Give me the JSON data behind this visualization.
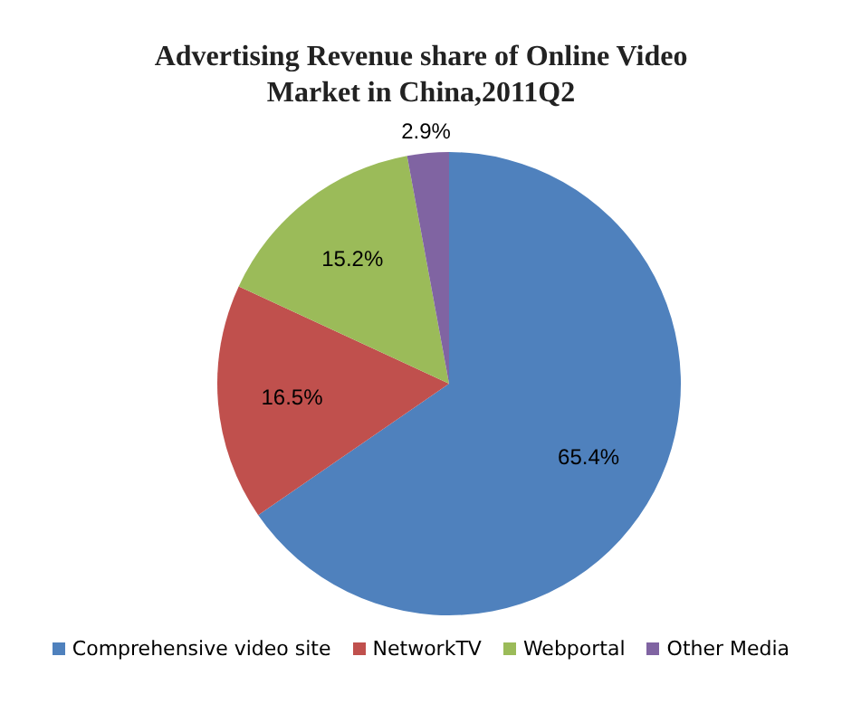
{
  "chart_data": {
    "type": "pie",
    "title": "Advertising Revenue share of Online Video Market in China,2011Q2",
    "categories": [
      "Comprehensive  video site",
      "NetworkTV",
      "Webportal",
      "Other Media"
    ],
    "values": [
      65.4,
      16.5,
      15.2,
      2.9
    ],
    "colors": [
      "#4f81bd",
      "#c0504d",
      "#9bbb59",
      "#8064a2"
    ],
    "value_labels": [
      "65.4%",
      "16.5%",
      "15.2%",
      "2.9%"
    ],
    "legend": "bottom"
  }
}
